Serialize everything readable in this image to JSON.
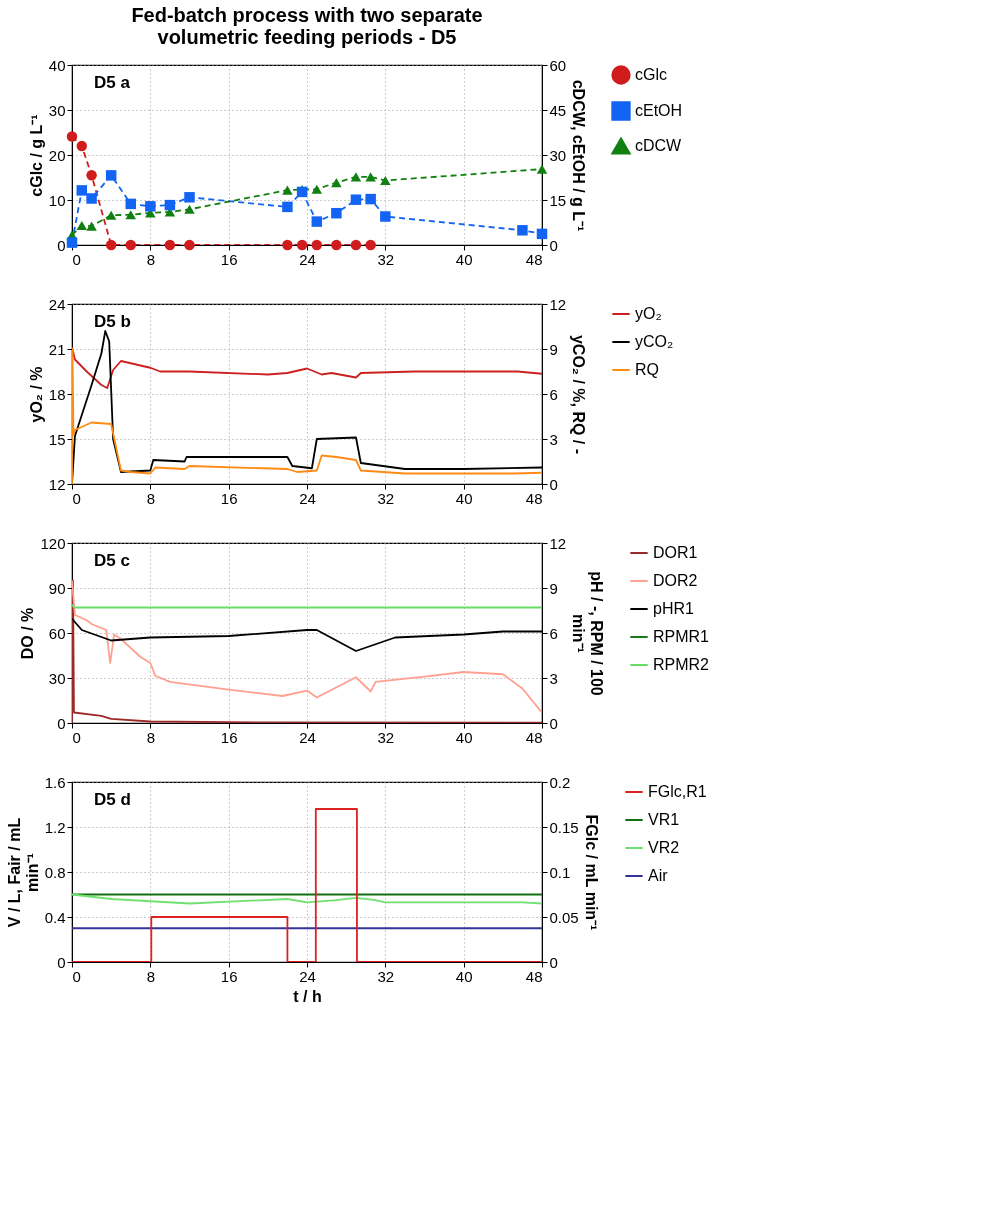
{
  "chart_data": [
    {
      "type": "line",
      "title": "Fed-batch process with two separate volumetric feeding periods  - D5",
      "ylabel": "cGlc / g L⁻¹",
      "y2label": "cDCW, cEtOH / g L⁻¹",
      "xlim": [
        0,
        48
      ],
      "xticks": [
        0,
        8,
        16,
        24,
        32,
        40,
        48
      ],
      "ylim": [
        0,
        40
      ],
      "yticks": [
        0,
        10,
        20,
        30,
        40
      ],
      "y2lim": [
        0,
        60
      ],
      "y2ticks": [
        0,
        15,
        30,
        45,
        60
      ],
      "grid": true,
      "legend": "right",
      "line_style": "dashed",
      "annotations": [
        "D5 a"
      ],
      "series": [
        {
          "name": "cGlc",
          "color": "#d01c1c",
          "marker": "circle",
          "x": [
            0,
            1,
            2,
            4,
            6,
            10,
            12,
            22,
            23.5,
            25,
            27,
            29,
            30.5
          ],
          "values": [
            24.1,
            22.0,
            15.5,
            0,
            0,
            0,
            0,
            0,
            0,
            0,
            0,
            0,
            0
          ]
        },
        {
          "name": "cEtOH",
          "color": "#1464f4",
          "marker": "square",
          "axis": "y2",
          "x": [
            0,
            1,
            2,
            4,
            6,
            8,
            10,
            12,
            22,
            23.5,
            25,
            27,
            29,
            30.5,
            32,
            46,
            48
          ],
          "values": [
            0.8,
            18.2,
            15.5,
            23.2,
            13.7,
            12.9,
            13.3,
            15.9,
            12.7,
            17.7,
            7.8,
            10.6,
            15.1,
            15.3,
            9.5,
            4.9,
            3.7
          ]
        },
        {
          "name": "cDCW",
          "color": "#108010",
          "marker": "triangle",
          "axis": "y2",
          "x": [
            0,
            1,
            2,
            4,
            6,
            8,
            10,
            12,
            22,
            23.5,
            25,
            27,
            29,
            30.5,
            32,
            48
          ],
          "values": [
            3.3,
            6.5,
            6.3,
            9.9,
            10.1,
            10.7,
            11.0,
            11.9,
            18.3,
            18.5,
            18.6,
            20.8,
            22.7,
            22.7,
            21.5,
            25.3
          ]
        }
      ]
    },
    {
      "type": "line",
      "ylabel": "yO₂ / %",
      "y2label": "yCO₂ / %, RQ / -",
      "xlim": [
        0,
        48
      ],
      "xticks": [
        0,
        8,
        16,
        24,
        32,
        40,
        48
      ],
      "ylim": [
        12,
        24
      ],
      "yticks": [
        12,
        15,
        18,
        21,
        24
      ],
      "y2lim": [
        0,
        12
      ],
      "y2ticks": [
        0,
        3,
        6,
        9,
        12
      ],
      "grid": true,
      "legend": "right",
      "line_style": "solid",
      "annotations": [
        "D5 b"
      ],
      "series": [
        {
          "name": "yO₂",
          "color": "#cc2020",
          "x": [
            0,
            0.3,
            1.5,
            3,
            3.6,
            4.2,
            5,
            8,
            9,
            12,
            20,
            22,
            24,
            25.5,
            26.5,
            29,
            29.5,
            35,
            45.5,
            48
          ],
          "values": [
            21.1,
            20.3,
            19.5,
            18.6,
            18.4,
            19.6,
            20.2,
            19.75,
            19.5,
            19.5,
            19.3,
            19.4,
            19.7,
            19.3,
            19.4,
            19.1,
            19.4,
            19.5,
            19.5,
            19.35
          ]
        },
        {
          "name": "yCO₂",
          "color": "#000000",
          "axis": "y2",
          "x": [
            0,
            0.3,
            1,
            2,
            3,
            3.4,
            3.8,
            4.2,
            5,
            8,
            8.3,
            11.5,
            11.7,
            22,
            22.5,
            24.5,
            25,
            29,
            29.5,
            34,
            40,
            48
          ],
          "values": [
            0,
            3.2,
            4.6,
            6.6,
            8.7,
            10.2,
            9.5,
            3.0,
            0.8,
            0.9,
            1.6,
            1.5,
            1.8,
            1.8,
            1.2,
            1.05,
            3.0,
            3.1,
            1.4,
            1.0,
            1.0,
            1.1
          ]
        },
        {
          "name": "RQ",
          "color": "#ff8a14",
          "axis": "y2",
          "x": [
            0,
            0.05,
            0.15,
            0.3,
            2,
            4,
            5,
            6,
            8,
            8.5,
            11.5,
            12,
            22,
            23,
            25,
            25.5,
            27,
            29,
            29.5,
            34,
            45,
            48
          ],
          "values": [
            0,
            9.0,
            3.3,
            3.6,
            4.1,
            4.0,
            0.9,
            0.8,
            0.7,
            1.1,
            1.0,
            1.2,
            1.0,
            0.8,
            0.9,
            1.9,
            1.8,
            1.6,
            0.9,
            0.7,
            0.7,
            0.75
          ]
        }
      ]
    },
    {
      "type": "line",
      "ylabel": "DO / %",
      "y2label": "pH / -, RPM / 100 min⁻¹",
      "xlim": [
        0,
        48
      ],
      "xticks": [
        0,
        8,
        16,
        24,
        32,
        40,
        48
      ],
      "ylim": [
        0,
        120
      ],
      "yticks": [
        0,
        30,
        60,
        90,
        120
      ],
      "y2lim": [
        0,
        12
      ],
      "y2ticks": [
        0,
        3,
        6,
        9,
        12
      ],
      "grid": true,
      "legend": "right",
      "line_style": "solid",
      "annotations": [
        "D5 c"
      ],
      "series": [
        {
          "name": "DOR1",
          "color": "#9b2a2a",
          "x": [
            0,
            0.1,
            0.2,
            3,
            4,
            8,
            20,
            48
          ],
          "values": [
            0,
            95,
            7,
            4.7,
            2.7,
            1,
            0.4,
            0.3
          ]
        },
        {
          "name": "DOR2",
          "color": "#ffa090",
          "x": [
            0,
            0.3,
            1.5,
            2,
            3.5,
            3.9,
            4.3,
            5,
            7,
            8,
            8.5,
            10,
            16,
            21.5,
            24,
            25,
            29,
            30.5,
            31,
            36,
            40,
            44,
            46,
            48
          ],
          "values": [
            95,
            72,
            68.5,
            66,
            62,
            40,
            59,
            56,
            44,
            40,
            31.5,
            27.4,
            22.2,
            18,
            21.6,
            17,
            30.5,
            21,
            27.4,
            30.9,
            34,
            32.5,
            23,
            6.8
          ]
        },
        {
          "name": "pHR1",
          "color": "#000000",
          "axis": "y2",
          "x": [
            0,
            1,
            4,
            8,
            16,
            24,
            25,
            29,
            33,
            40,
            44,
            48
          ],
          "values": [
            6.95,
            6.2,
            5.5,
            5.7,
            5.8,
            6.2,
            6.2,
            4.8,
            5.7,
            5.9,
            6.1,
            6.1
          ]
        },
        {
          "name": "RPMR1",
          "color": "#1a7a1a"
        },
        {
          "name": "RPMR2",
          "color": "#66dd66",
          "axis": "y2",
          "x": [
            0,
            0.2,
            48
          ],
          "values": [
            7.9,
            7.7,
            7.7
          ]
        }
      ]
    },
    {
      "type": "line",
      "xlabel": "t / h",
      "ylabel": "V / L, Fair / mL min⁻¹",
      "y2label": "FGlc / mL min⁻¹",
      "xlim": [
        0,
        48
      ],
      "xticks": [
        0,
        8,
        16,
        24,
        32,
        40,
        48
      ],
      "ylim": [
        0,
        1.6
      ],
      "yticks": [
        0,
        0.4,
        0.8,
        1.2,
        1.6
      ],
      "y2lim": [
        0,
        0.2
      ],
      "y2ticks": [
        0,
        0.05,
        0.1,
        0.15,
        0.2
      ],
      "grid": true,
      "legend": "right",
      "line_style": "solid",
      "annotations": [
        "D5 d"
      ],
      "series": [
        {
          "name": "FGlc,R1",
          "color": "#dd2222",
          "axis": "y2",
          "x": [
            0,
            8.1,
            8.1,
            22,
            22,
            24.9,
            24.9,
            29.1,
            29.1,
            48
          ],
          "values": [
            0,
            0,
            0.05,
            0.05,
            0,
            0,
            0.17,
            0.17,
            0,
            0
          ]
        },
        {
          "name": "VR1",
          "color": "#107010",
          "x": [
            0,
            48
          ],
          "values": [
            0.6,
            0.6
          ]
        },
        {
          "name": "VR2",
          "color": "#70e070",
          "x": [
            0,
            4,
            8,
            12,
            22,
            24,
            27,
            29,
            31,
            32,
            46,
            48
          ],
          "values": [
            0.6,
            0.56,
            0.54,
            0.52,
            0.56,
            0.53,
            0.55,
            0.57,
            0.55,
            0.53,
            0.53,
            0.52
          ]
        },
        {
          "name": "Air",
          "color": "#333399",
          "x": [
            0,
            48
          ],
          "values": [
            0.3,
            0.3
          ]
        }
      ]
    }
  ]
}
